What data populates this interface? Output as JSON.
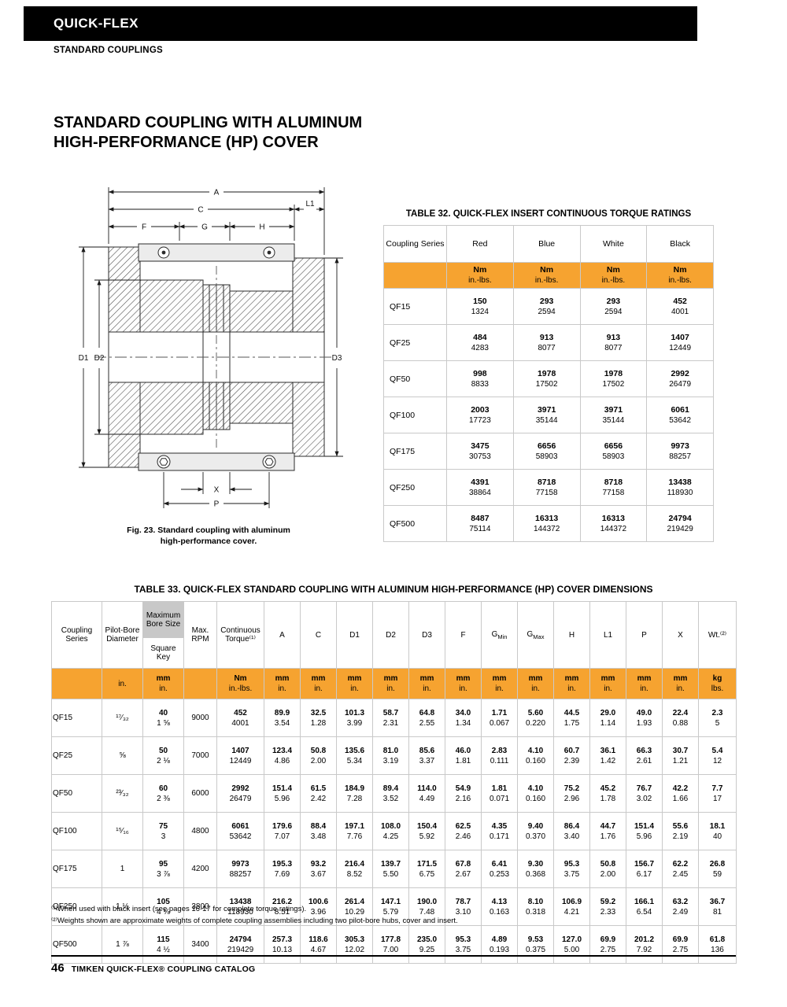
{
  "header": {
    "brand": "QUICK-FLEX",
    "section": "STANDARD COUPLINGS"
  },
  "title": {
    "line1": "STANDARD COUPLING WITH ALUMINUM",
    "line2": "HIGH-PERFORMANCE (HP) COVER"
  },
  "figure": {
    "caption_line1": "Fig. 23. Standard coupling with aluminum",
    "caption_line2": "high-performance cover.",
    "dims": {
      "a": "A",
      "c": "C",
      "l1": "L1",
      "f": "F",
      "g": "G",
      "h": "H",
      "d1": "D1",
      "d2": "D2",
      "d3": "D3",
      "x": "X",
      "p": "P"
    }
  },
  "table32": {
    "title": "TABLE 32. QUICK-FLEX INSERT CONTINUOUS TORQUE RATINGS",
    "col_series": "Coupling Series",
    "colors": [
      "Red",
      "Blue",
      "White",
      "Black"
    ],
    "unit_top": "Nm",
    "unit_bottom": "in.-lbs.",
    "rows": [
      {
        "series": "QF15",
        "values": [
          [
            "150",
            "1324"
          ],
          [
            "293",
            "2594"
          ],
          [
            "293",
            "2594"
          ],
          [
            "452",
            "4001"
          ]
        ]
      },
      {
        "series": "QF25",
        "values": [
          [
            "484",
            "4283"
          ],
          [
            "913",
            "8077"
          ],
          [
            "913",
            "8077"
          ],
          [
            "1407",
            "12449"
          ]
        ]
      },
      {
        "series": "QF50",
        "values": [
          [
            "998",
            "8833"
          ],
          [
            "1978",
            "17502"
          ],
          [
            "1978",
            "17502"
          ],
          [
            "2992",
            "26479"
          ]
        ]
      },
      {
        "series": "QF100",
        "values": [
          [
            "2003",
            "17723"
          ],
          [
            "3971",
            "35144"
          ],
          [
            "3971",
            "35144"
          ],
          [
            "6061",
            "53642"
          ]
        ]
      },
      {
        "series": "QF175",
        "values": [
          [
            "3475",
            "30753"
          ],
          [
            "6656",
            "58903"
          ],
          [
            "6656",
            "58903"
          ],
          [
            "9973",
            "88257"
          ]
        ]
      },
      {
        "series": "QF250",
        "values": [
          [
            "4391",
            "38864"
          ],
          [
            "8718",
            "77158"
          ],
          [
            "8718",
            "77158"
          ],
          [
            "13438",
            "118930"
          ]
        ]
      },
      {
        "series": "QF500",
        "values": [
          [
            "8487",
            "75114"
          ],
          [
            "16313",
            "144372"
          ],
          [
            "16313",
            "144372"
          ],
          [
            "24794",
            "219429"
          ]
        ]
      }
    ]
  },
  "table33": {
    "title": "TABLE 33. QUICK-FLEX STANDARD COUPLING WITH ALUMINUM HIGH-PERFORMANCE (HP) COVER DIMENSIONS",
    "headers": [
      {
        "label": "Coupling Series"
      },
      {
        "label": "Pilot-Bore Diameter"
      },
      {
        "label": "Maximum Bore Size",
        "label2": "Square Key"
      },
      {
        "label": "Max. RPM"
      },
      {
        "label": "Continuous Torque⁽¹⁾"
      },
      {
        "label": "A"
      },
      {
        "label": "C"
      },
      {
        "label": "D1"
      },
      {
        "label": "D2"
      },
      {
        "label": "D3"
      },
      {
        "label": "F"
      },
      {
        "label": "G",
        "sub": "Min"
      },
      {
        "label": "G",
        "sub": "Max"
      },
      {
        "label": "H"
      },
      {
        "label": "L1"
      },
      {
        "label": "P"
      },
      {
        "label": "X"
      },
      {
        "label": "Wt.⁽²⁾"
      }
    ],
    "units": [
      [
        ""
      ],
      [
        "in."
      ],
      [
        "mm",
        "in."
      ],
      [
        ""
      ],
      [
        "Nm",
        "in.-lbs."
      ],
      [
        "mm",
        "in."
      ],
      [
        "mm",
        "in."
      ],
      [
        "mm",
        "in."
      ],
      [
        "mm",
        "in."
      ],
      [
        "mm",
        "in."
      ],
      [
        "mm",
        "in."
      ],
      [
        "mm",
        "in."
      ],
      [
        "mm",
        "in."
      ],
      [
        "mm",
        "in."
      ],
      [
        "mm",
        "in."
      ],
      [
        "mm",
        "in."
      ],
      [
        "mm",
        "in."
      ],
      [
        "kg",
        "lbs."
      ]
    ],
    "rows": [
      {
        "series": "QF15",
        "cells": [
          [
            "¹⁷⁄₃₂"
          ],
          [
            "40",
            "1 ⅝"
          ],
          [
            "9000"
          ],
          [
            "452",
            "4001"
          ],
          [
            "89.9",
            "3.54"
          ],
          [
            "32.5",
            "1.28"
          ],
          [
            "101.3",
            "3.99"
          ],
          [
            "58.7",
            "2.31"
          ],
          [
            "64.8",
            "2.55"
          ],
          [
            "34.0",
            "1.34"
          ],
          [
            "1.71",
            "0.067"
          ],
          [
            "5.60",
            "0.220"
          ],
          [
            "44.5",
            "1.75"
          ],
          [
            "29.0",
            "1.14"
          ],
          [
            "49.0",
            "1.93"
          ],
          [
            "22.4",
            "0.88"
          ],
          [
            "2.3",
            "5"
          ]
        ]
      },
      {
        "series": "QF25",
        "cells": [
          [
            "⅝"
          ],
          [
            "50",
            "2 ⅛"
          ],
          [
            "7000"
          ],
          [
            "1407",
            "12449"
          ],
          [
            "123.4",
            "4.86"
          ],
          [
            "50.8",
            "2.00"
          ],
          [
            "135.6",
            "5.34"
          ],
          [
            "81.0",
            "3.19"
          ],
          [
            "85.6",
            "3.37"
          ],
          [
            "46.0",
            "1.81"
          ],
          [
            "2.83",
            "0.111"
          ],
          [
            "4.10",
            "0.160"
          ],
          [
            "60.7",
            "2.39"
          ],
          [
            "36.1",
            "1.42"
          ],
          [
            "66.3",
            "2.61"
          ],
          [
            "30.7",
            "1.21"
          ],
          [
            "5.4",
            "12"
          ]
        ]
      },
      {
        "series": "QF50",
        "cells": [
          [
            "²³⁄₃₂"
          ],
          [
            "60",
            "2 ⅜"
          ],
          [
            "6000"
          ],
          [
            "2992",
            "26479"
          ],
          [
            "151.4",
            "5.96"
          ],
          [
            "61.5",
            "2.42"
          ],
          [
            "184.9",
            "7.28"
          ],
          [
            "89.4",
            "3.52"
          ],
          [
            "114.0",
            "4.49"
          ],
          [
            "54.9",
            "2.16"
          ],
          [
            "1.81",
            "0.071"
          ],
          [
            "4.10",
            "0.160"
          ],
          [
            "75.2",
            "2.96"
          ],
          [
            "45.2",
            "1.78"
          ],
          [
            "76.7",
            "3.02"
          ],
          [
            "42.2",
            "1.66"
          ],
          [
            "7.7",
            "17"
          ]
        ]
      },
      {
        "series": "QF100",
        "cells": [
          [
            "¹⁵⁄₁₆"
          ],
          [
            "75",
            "3"
          ],
          [
            "4800"
          ],
          [
            "6061",
            "53642"
          ],
          [
            "179.6",
            "7.07"
          ],
          [
            "88.4",
            "3.48"
          ],
          [
            "197.1",
            "7.76"
          ],
          [
            "108.0",
            "4.25"
          ],
          [
            "150.4",
            "5.92"
          ],
          [
            "62.5",
            "2.46"
          ],
          [
            "4.35",
            "0.171"
          ],
          [
            "9.40",
            "0.370"
          ],
          [
            "86.4",
            "3.40"
          ],
          [
            "44.7",
            "1.76"
          ],
          [
            "151.4",
            "5.96"
          ],
          [
            "55.6",
            "2.19"
          ],
          [
            "18.1",
            "40"
          ]
        ]
      },
      {
        "series": "QF175",
        "cells": [
          [
            "1"
          ],
          [
            "95",
            "3 ⅞"
          ],
          [
            "4200"
          ],
          [
            "9973",
            "88257"
          ],
          [
            "195.3",
            "7.69"
          ],
          [
            "93.2",
            "3.67"
          ],
          [
            "216.4",
            "8.52"
          ],
          [
            "139.7",
            "5.50"
          ],
          [
            "171.5",
            "6.75"
          ],
          [
            "67.8",
            "2.67"
          ],
          [
            "6.41",
            "0.253"
          ],
          [
            "9.30",
            "0.368"
          ],
          [
            "95.3",
            "3.75"
          ],
          [
            "50.8",
            "2.00"
          ],
          [
            "156.7",
            "6.17"
          ],
          [
            "62.2",
            "2.45"
          ],
          [
            "26.8",
            "59"
          ]
        ]
      },
      {
        "series": "QF250",
        "cells": [
          [
            "1 ½"
          ],
          [
            "105",
            "4 ⅛"
          ],
          [
            "3800"
          ],
          [
            "13438",
            "118930"
          ],
          [
            "216.2",
            "8.51"
          ],
          [
            "100.6",
            "3.96"
          ],
          [
            "261.4",
            "10.29"
          ],
          [
            "147.1",
            "5.79"
          ],
          [
            "190.0",
            "7.48"
          ],
          [
            "78.7",
            "3.10"
          ],
          [
            "4.13",
            "0.163"
          ],
          [
            "8.10",
            "0.318"
          ],
          [
            "106.9",
            "4.21"
          ],
          [
            "59.2",
            "2.33"
          ],
          [
            "166.1",
            "6.54"
          ],
          [
            "63.2",
            "2.49"
          ],
          [
            "36.7",
            "81"
          ]
        ]
      },
      {
        "series": "QF500",
        "cells": [
          [
            "1 ⅞"
          ],
          [
            "115",
            "4 ½"
          ],
          [
            "3400"
          ],
          [
            "24794",
            "219429"
          ],
          [
            "257.3",
            "10.13"
          ],
          [
            "118.6",
            "4.67"
          ],
          [
            "305.3",
            "12.02"
          ],
          [
            "177.8",
            "7.00"
          ],
          [
            "235.0",
            "9.25"
          ],
          [
            "95.3",
            "3.75"
          ],
          [
            "4.89",
            "0.193"
          ],
          [
            "9.53",
            "0.375"
          ],
          [
            "127.0",
            "5.00"
          ],
          [
            "69.9",
            "2.75"
          ],
          [
            "201.2",
            "7.92"
          ],
          [
            "69.9",
            "2.75"
          ],
          [
            "61.8",
            "136"
          ]
        ]
      }
    ]
  },
  "footnotes": {
    "note1": "⁽¹⁾When used with black insert (see pages 16-17 for complete torque ratings).",
    "note2": "⁽²⁾Weights shown are approximate weights of complete coupling assemblies including two pilot-bore hubs, cover and insert."
  },
  "footer": {
    "page_number": "46",
    "text": "TIMKEN QUICK-FLEX® COUPLING CATALOG"
  },
  "colors": {
    "accent_orange": "#F6A330",
    "header_black": "#000000",
    "shaded_gray": "#C8C8C8"
  }
}
